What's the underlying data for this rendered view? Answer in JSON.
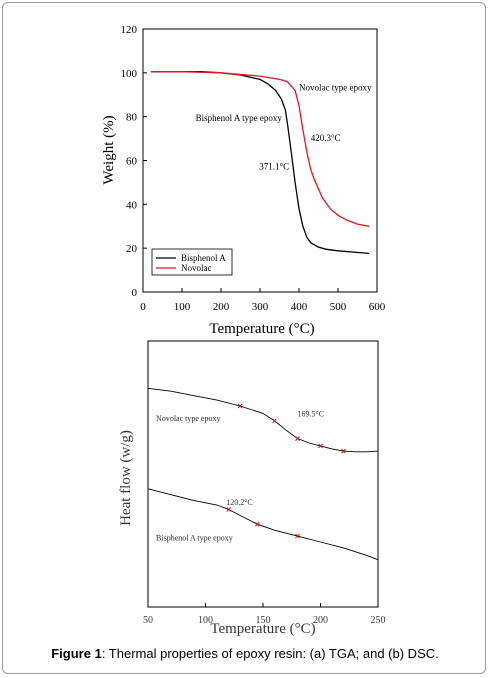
{
  "caption": {
    "label": "Figure 1",
    "text": ": Thermal properties of epoxy resin: (a) TGA; and (b) DSC."
  },
  "chart_data": [
    {
      "type": "line",
      "title": "",
      "xlabel": "Temperature (°C)",
      "ylabel": "Weight (%)",
      "xlim": [
        0,
        600
      ],
      "ylim": [
        0,
        120
      ],
      "x_ticks": [
        "0",
        "100",
        "200",
        "300",
        "400",
        "500",
        "600"
      ],
      "y_ticks": [
        "0",
        "20",
        "40",
        "60",
        "80",
        "100",
        "120"
      ],
      "grid": false,
      "legend_position": "bottom-left",
      "series": [
        {
          "name": "Bisphenol A",
          "color": "#000000",
          "x": [
            20,
            100,
            150,
            200,
            250,
            300,
            320,
            340,
            355,
            365,
            371,
            380,
            390,
            400,
            410,
            420,
            430,
            440,
            450,
            470,
            500,
            540,
            580
          ],
          "y": [
            100.5,
            100.5,
            100.5,
            100,
            99,
            97,
            95,
            92,
            88,
            83,
            76,
            64,
            50,
            38,
            30,
            25,
            22.5,
            21.5,
            20.5,
            19.5,
            18.8,
            18.2,
            17.6
          ]
        },
        {
          "name": "Novolac",
          "color": "#e8141b",
          "x": [
            20,
            100,
            200,
            300,
            350,
            370,
            390,
            400,
            410,
            420,
            430,
            440,
            450,
            460,
            480,
            500,
            520,
            550,
            580
          ],
          "y": [
            100.5,
            100.5,
            100,
            98.5,
            97,
            96,
            92,
            85,
            74,
            64,
            56,
            51,
            47,
            43,
            38,
            35,
            33,
            31,
            30
          ]
        }
      ],
      "annotations": [
        {
          "text": "Novolac type epoxy",
          "x": 400,
          "y": 92
        },
        {
          "text": "Bisphenol A type epoxy",
          "x": 135,
          "y": 78
        },
        {
          "text": "420.3°C",
          "x": 430,
          "y": 69
        },
        {
          "text": "371.1°C",
          "x": 298,
          "y": 56
        }
      ]
    },
    {
      "type": "line",
      "title": "",
      "xlabel": "Temperature (°C)",
      "ylabel": "Heat flow (w/g)",
      "xlim": [
        50,
        250
      ],
      "x_ticks": [
        "50",
        "100",
        "150",
        "200",
        "250"
      ],
      "grid": false,
      "series": [
        {
          "name": "Novolac type epoxy",
          "color": "#000000",
          "x": [
            50,
            70,
            90,
            110,
            130,
            150,
            160,
            169.5,
            180,
            190,
            200,
            210,
            220,
            230,
            240,
            250
          ],
          "y": [
            0.8,
            0.6,
            0.3,
            0.0,
            -0.4,
            -0.9,
            -1.4,
            -2.0,
            -2.6,
            -2.9,
            -3.1,
            -3.3,
            -3.45,
            -3.5,
            -3.5,
            -3.45
          ]
        },
        {
          "name": "Bisphenol A type epoxy",
          "color": "#000000",
          "x": [
            50,
            70,
            90,
            110,
            120.2,
            130,
            145,
            160,
            180,
            200,
            220,
            240,
            250
          ],
          "y": [
            -6.0,
            -6.4,
            -6.8,
            -7.1,
            -7.4,
            -7.8,
            -8.4,
            -8.8,
            -9.2,
            -9.6,
            -10.0,
            -10.5,
            -10.8
          ]
        }
      ],
      "annotations": [
        {
          "text": "Novolac type epoxy",
          "x": 57,
          "y": -1.4
        },
        {
          "text": "169.5°C",
          "x": 180,
          "y": -1.1
        },
        {
          "text": "120.2°C",
          "x": 118,
          "y": -7.1
        },
        {
          "text": "Bisphenol A type epoxy",
          "x": 57,
          "y": -9.5
        }
      ]
    }
  ]
}
